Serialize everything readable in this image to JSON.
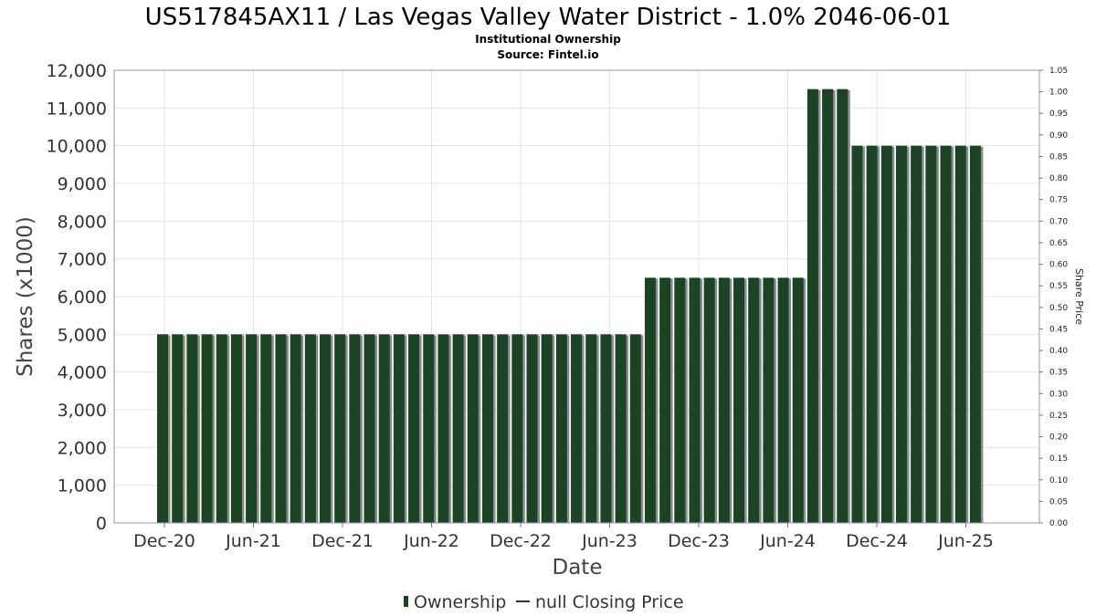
{
  "chart_data": {
    "type": "bar",
    "title": "US517845AX11 / Las Vegas Valley Water District - 1.0% 2046-06-01",
    "subtitle": "Institutional Ownership",
    "source": "Source: Fintel.io",
    "xlabel": "Date",
    "ylabel": "Shares (x1000)",
    "y2label": "Share Price",
    "ylim": [
      0,
      12000
    ],
    "y2lim": [
      0,
      1.05
    ],
    "yticks": [
      "0",
      "1,000",
      "2,000",
      "3,000",
      "4,000",
      "5,000",
      "6,000",
      "7,000",
      "8,000",
      "9,000",
      "10,000",
      "11,000",
      "12,000"
    ],
    "y2ticks": [
      "0.00",
      "0.05",
      "0.10",
      "0.15",
      "0.20",
      "0.25",
      "0.30",
      "0.35",
      "0.40",
      "0.45",
      "0.50",
      "0.55",
      "0.60",
      "0.65",
      "0.70",
      "0.75",
      "0.80",
      "0.85",
      "0.90",
      "0.95",
      "1.00",
      "1.05"
    ],
    "xticks": [
      "Dec-20",
      "Jun-21",
      "Dec-21",
      "Jun-22",
      "Dec-22",
      "Jun-23",
      "Dec-23",
      "Jun-24",
      "Dec-24",
      "Jun-25"
    ],
    "grid": true,
    "legend_position": "bottom",
    "series": [
      {
        "name": "Ownership",
        "color": "#1b4424",
        "values": [
          5000,
          5000,
          5000,
          5000,
          5000,
          5000,
          5000,
          5000,
          5000,
          5000,
          5000,
          5000,
          5000,
          5000,
          5000,
          5000,
          5000,
          5000,
          5000,
          5000,
          5000,
          5000,
          5000,
          5000,
          5000,
          5000,
          5000,
          5000,
          5000,
          5000,
          5000,
          5000,
          5000,
          6500,
          6500,
          6500,
          6500,
          6500,
          6500,
          6500,
          6500,
          6500,
          6500,
          6500,
          11500,
          11500,
          11500,
          10000,
          10000,
          10000,
          10000,
          10000,
          10000,
          10000,
          10000,
          10000
        ]
      }
    ],
    "legend": [
      {
        "label": "Ownership",
        "marker": "bar",
        "color": "#1b4424"
      },
      {
        "label": "null Closing Price",
        "marker": "line",
        "color": "#333333"
      }
    ]
  }
}
